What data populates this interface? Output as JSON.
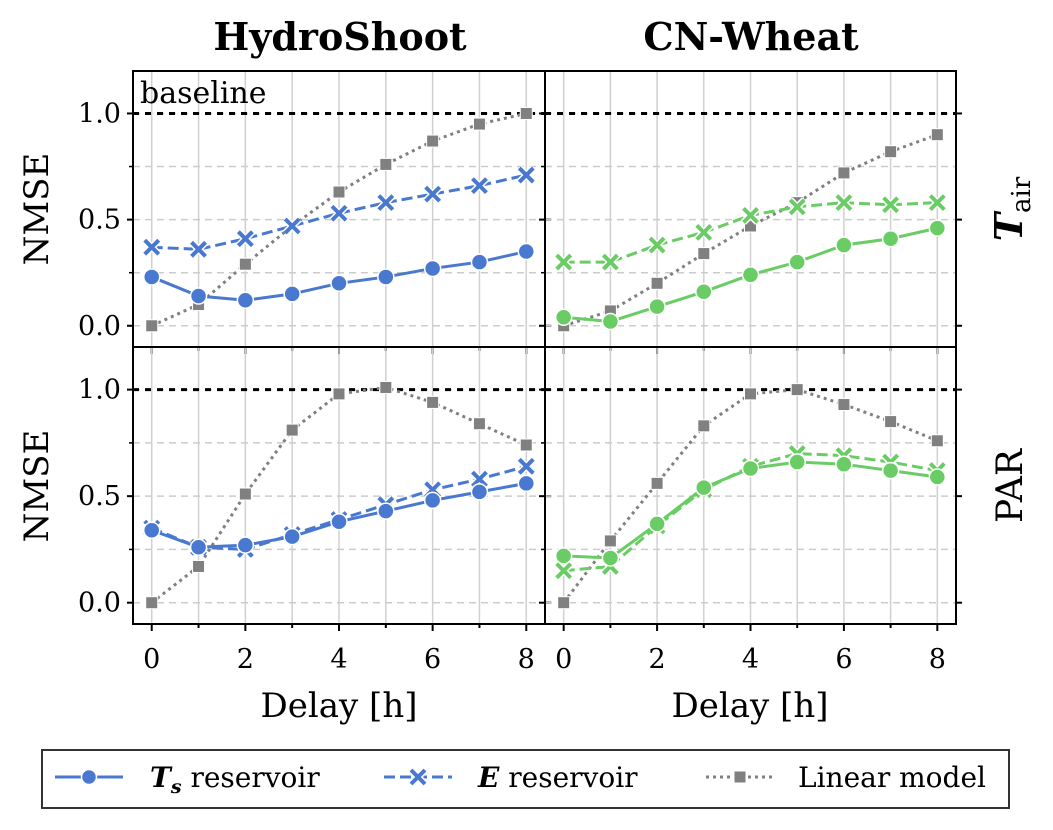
{
  "chart_data": {
    "type": "line",
    "columns": [
      "HydroShoot",
      "CN-Wheat"
    ],
    "rows": [
      {
        "label_main": "T",
        "label_sub": "air"
      },
      {
        "label_main": "PAR",
        "label_sub": ""
      }
    ],
    "ylabel": "NMSE",
    "xlabel": "Delay [h]",
    "annotation": "baseline",
    "baseline_value": 1.0,
    "x": [
      0,
      1,
      2,
      3,
      4,
      5,
      6,
      7,
      8
    ],
    "xticks": [
      0,
      2,
      4,
      6,
      8
    ],
    "xlim": [
      -0.4,
      8.4
    ],
    "ylim": [
      -0.1,
      1.2
    ],
    "yticks": [
      0.0,
      0.5,
      1.0
    ],
    "ytick_labels": [
      "0.0",
      "0.5",
      "1.0"
    ],
    "xtick_labels": [
      "0",
      "2",
      "4",
      "6",
      "8"
    ],
    "grid": true,
    "legend_position": "bottom",
    "legend": [
      {
        "name_main": "T",
        "name_sub": "s",
        "name_rest": " reservoir",
        "marker": "circle",
        "dash": "solid"
      },
      {
        "name_main": "E",
        "name_sub": "",
        "name_rest": " reservoir",
        "marker": "x",
        "dash": "dashed"
      },
      {
        "name_main": "",
        "name_sub": "",
        "name_rest": "Linear model",
        "marker": "square",
        "dash": "dotted"
      }
    ],
    "colors": {
      "HydroShoot": "#4878d0",
      "CN-Wheat": "#6acc64",
      "linear": "#808080",
      "baseline": "#000000"
    },
    "panels": [
      {
        "column": "HydroShoot",
        "row": "T_air",
        "series": [
          {
            "name": "Ts reservoir",
            "values": [
              0.23,
              0.14,
              0.12,
              0.15,
              0.2,
              0.23,
              0.27,
              0.3,
              0.35
            ]
          },
          {
            "name": "E reservoir",
            "values": [
              0.37,
              0.36,
              0.41,
              0.47,
              0.53,
              0.58,
              0.62,
              0.66,
              0.71
            ]
          },
          {
            "name": "Linear model",
            "values": [
              0.0,
              0.1,
              0.29,
              0.47,
              0.63,
              0.76,
              0.87,
              0.95,
              1.0
            ]
          }
        ]
      },
      {
        "column": "CN-Wheat",
        "row": "T_air",
        "series": [
          {
            "name": "Ts reservoir",
            "values": [
              0.04,
              0.02,
              0.09,
              0.16,
              0.24,
              0.3,
              0.38,
              0.41,
              0.46
            ]
          },
          {
            "name": "E reservoir",
            "values": [
              0.3,
              0.3,
              0.38,
              0.44,
              0.52,
              0.56,
              0.58,
              0.57,
              0.58
            ]
          },
          {
            "name": "Linear model",
            "values": [
              0.0,
              0.07,
              0.2,
              0.34,
              0.47,
              0.58,
              0.72,
              0.82,
              0.9
            ]
          }
        ]
      },
      {
        "column": "HydroShoot",
        "row": "PAR",
        "series": [
          {
            "name": "Ts reservoir",
            "values": [
              0.34,
              0.26,
              0.27,
              0.31,
              0.38,
              0.43,
              0.48,
              0.52,
              0.56
            ]
          },
          {
            "name": "E reservoir",
            "values": [
              0.35,
              0.26,
              0.25,
              0.32,
              0.39,
              0.46,
              0.53,
              0.58,
              0.64
            ]
          },
          {
            "name": "Linear model",
            "values": [
              0.0,
              0.17,
              0.51,
              0.81,
              0.98,
              1.01,
              0.94,
              0.84,
              0.74
            ]
          }
        ]
      },
      {
        "column": "CN-Wheat",
        "row": "PAR",
        "series": [
          {
            "name": "Ts reservoir",
            "values": [
              0.22,
              0.21,
              0.37,
              0.54,
              0.63,
              0.66,
              0.65,
              0.62,
              0.59
            ]
          },
          {
            "name": "E reservoir",
            "values": [
              0.15,
              0.17,
              0.36,
              0.53,
              0.64,
              0.7,
              0.69,
              0.66,
              0.62
            ]
          },
          {
            "name": "Linear model",
            "values": [
              0.0,
              0.29,
              0.56,
              0.83,
              0.98,
              1.0,
              0.93,
              0.85,
              0.76
            ]
          }
        ]
      }
    ]
  }
}
